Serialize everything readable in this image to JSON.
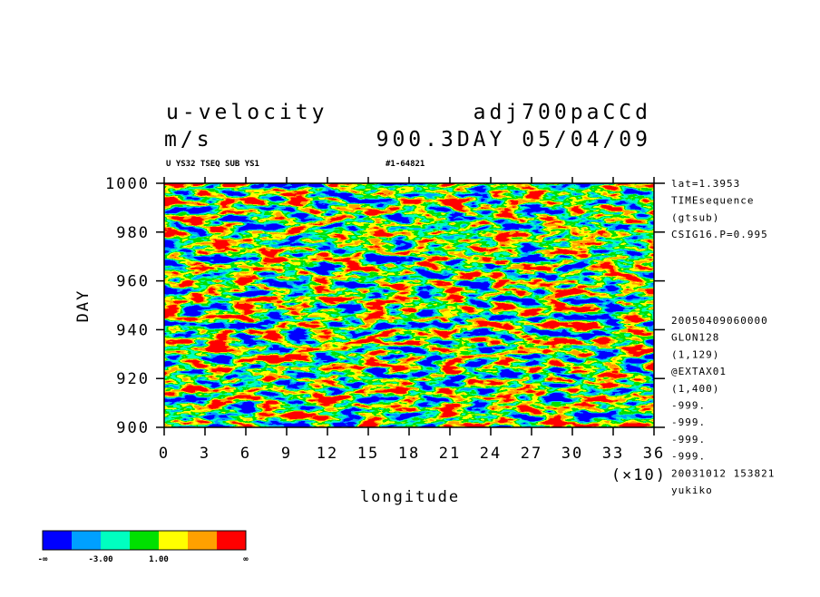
{
  "chart_data": {
    "type": "contour",
    "title": "u-velocity",
    "title_right": "adj700paCCd",
    "subtitle": "m/s",
    "subtitle_right": "900.3DAY 05/04/09",
    "note": "U YS32 TSEQ SUB YS1",
    "note_right": "#1-64821",
    "xlabel": "longitude",
    "ylabel": "DAY",
    "x_unit": "(×10)",
    "xlim": [
      0,
      36
    ],
    "xticks": [
      0,
      3,
      6,
      9,
      12,
      15,
      18,
      21,
      24,
      27,
      30,
      33,
      36
    ],
    "ylim": [
      900,
      1000
    ],
    "yticks": [
      900,
      920,
      940,
      960,
      980,
      1000
    ],
    "info_top": [
      "lat=1.3953",
      "TIMEsequence",
      "(gtsub)",
      "CSIG16.P=0.995"
    ],
    "info_bottom": [
      "20050409060000",
      "GLON128",
      "(1,129)",
      "@EXTAX01",
      "(1,400)",
      "-999.",
      "-999.",
      "-999.",
      "-999.",
      "20031012 153821",
      "yukiko"
    ],
    "colorbar": {
      "colors": [
        "#0000ff",
        "#00a0ff",
        "#00ffc0",
        "#00e000",
        "#ffff00",
        "#ffa000",
        "#ff0000"
      ],
      "ticks": [
        "-∞",
        {
          "value": -3,
          "label": "-3.00"
        },
        {
          "value": 1,
          "label": "1.00"
        },
        "∞"
      ]
    }
  }
}
